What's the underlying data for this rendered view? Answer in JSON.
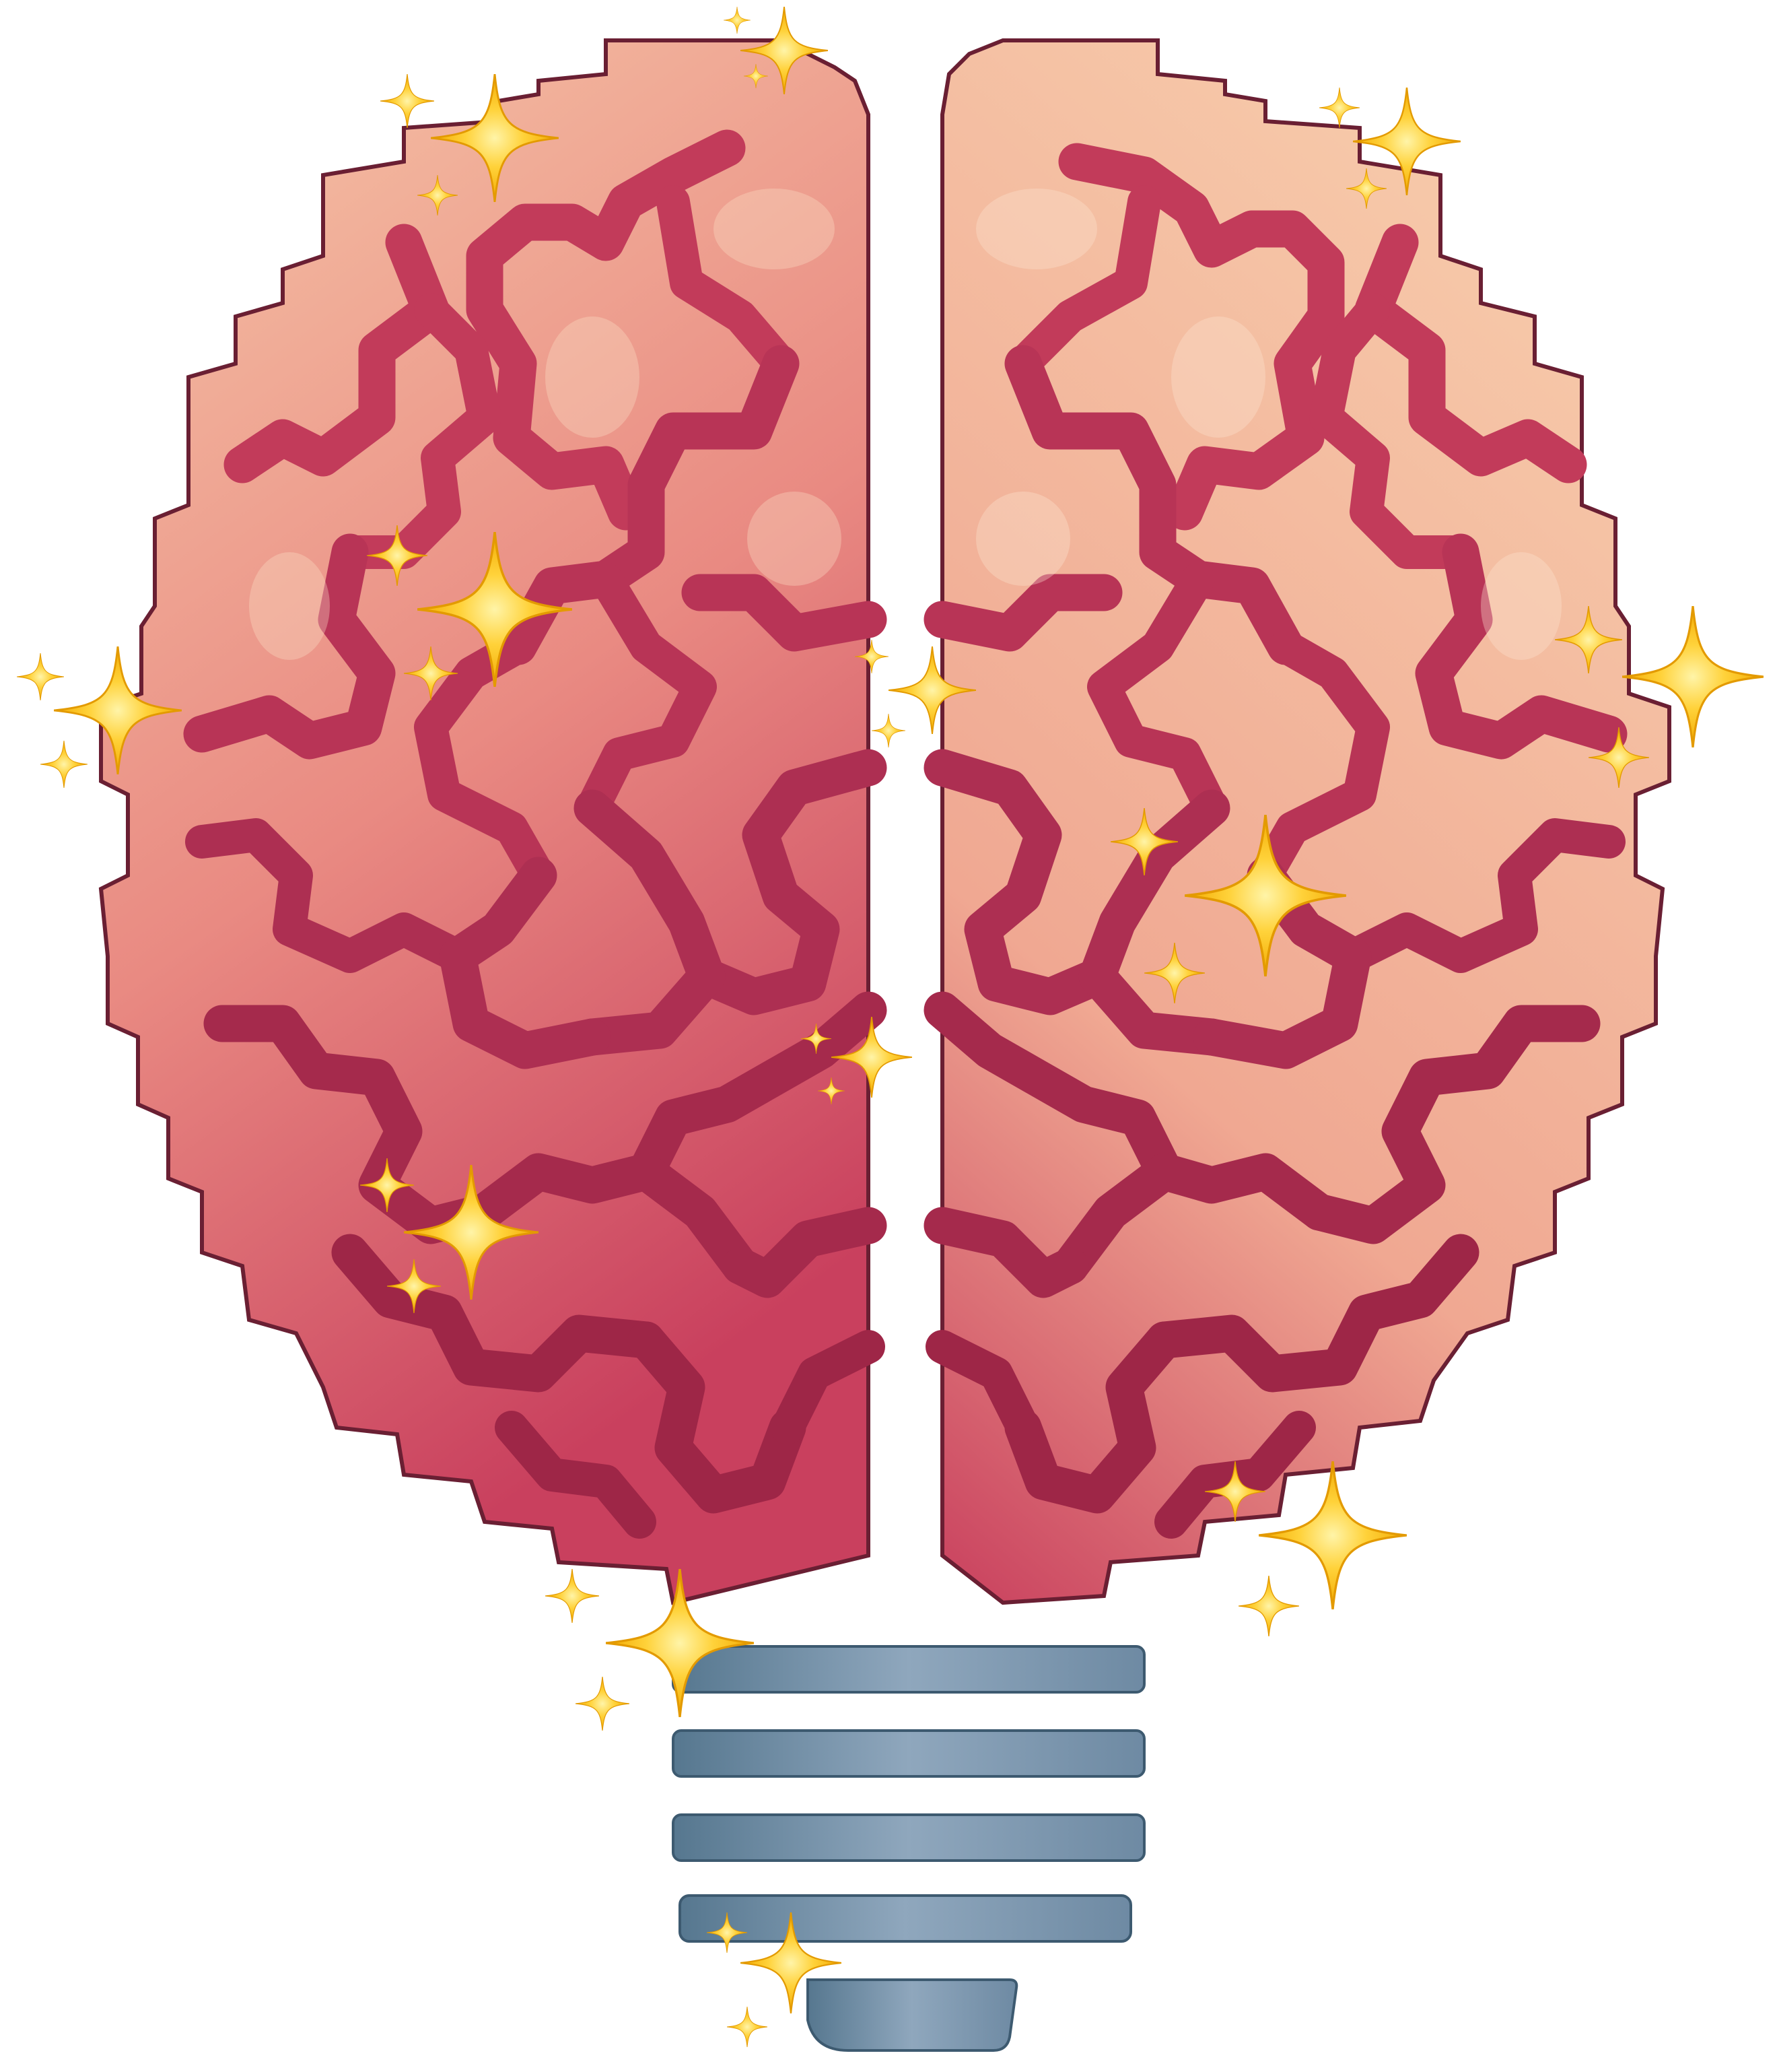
{
  "illustration": {
    "subject": "brain-lightbulb-icon",
    "icons": [
      "brain-icon",
      "lightbulb-base-icon",
      "sparkle-icon"
    ],
    "colors": {
      "background": "#ffffff",
      "brain_light": "#f6c7a8",
      "brain_mid": "#e98a82",
      "brain_dark": "#c9405e",
      "sulci": "#c23b5a",
      "sulci_deep": "#a52a4c",
      "base_light": "#8fa7bd",
      "base_dark": "#56778f",
      "sparkle": "#ffd23a",
      "sparkle_edge": "#f2a900"
    },
    "base_bar_count": 5,
    "sparkle_cluster_count": 11
  }
}
